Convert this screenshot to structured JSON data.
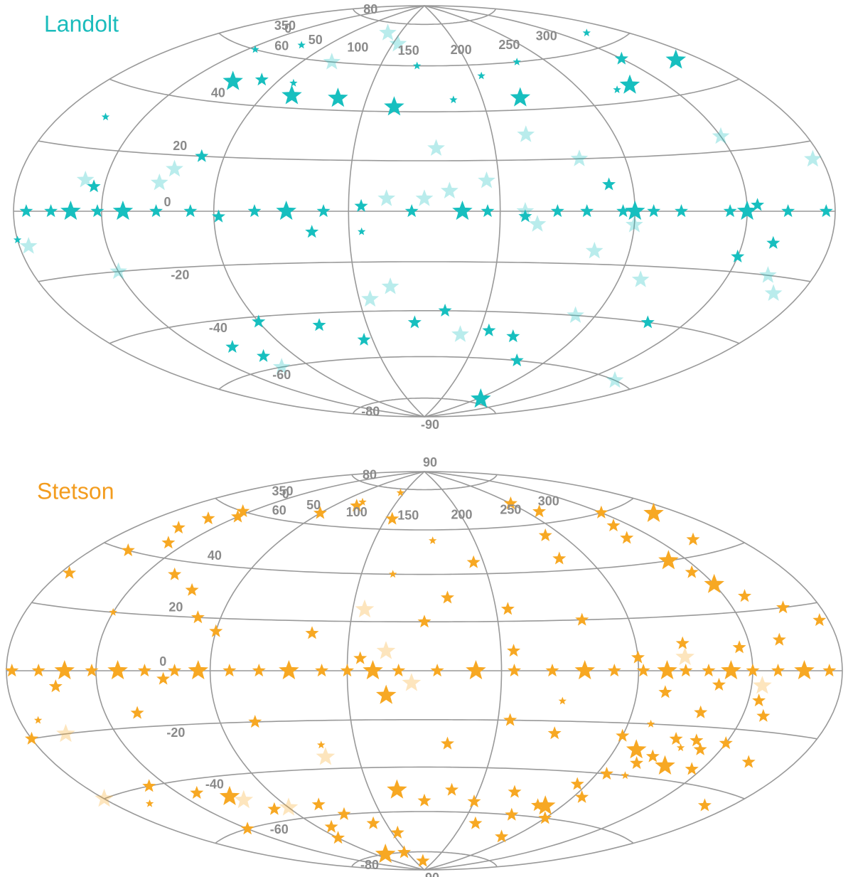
{
  "chart_data": [
    {
      "type": "scatter",
      "projection": "hammer",
      "title": "Landolt",
      "title_color": "#1bbcbc",
      "grid": true,
      "xlim": [
        -15,
        345
      ],
      "ylim": [
        -90,
        90
      ],
      "xticks": [
        0,
        50,
        100,
        150,
        200,
        250,
        300,
        350
      ],
      "yticks": [
        -90,
        -80,
        -60,
        -40,
        -20,
        0,
        20,
        40,
        60,
        80
      ],
      "series": [
        {
          "color": "#17bfbf",
          "opacity": 1,
          "size": 15,
          "x": [
            15,
            40,
            110,
            180,
            250,
            300,
            55,
            95,
            120,
            150,
            215,
            280,
            330,
            255
          ],
          "y": [
            0,
            0,
            0,
            0,
            0,
            0,
            48,
            45,
            45,
            42,
            45,
            46,
            50,
            -78
          ]
        },
        {
          "color": "#17bfbf",
          "opacity": 1,
          "size": 10,
          "x": [
            5,
            28,
            55,
            70,
            82,
            97,
            125,
            140,
            160,
            190,
            205,
            218,
            230,
            245,
            258,
            270,
            292,
            305,
            320,
            340,
            352,
            240,
            300,
            315,
            25,
            110,
            80,
            160,
            175,
            200,
            215,
            230,
            60,
            50,
            130,
            280,
            120,
            70,
            70,
            300
          ],
          "y": [
            0,
            0,
            0,
            0,
            -2,
            0,
            0,
            2,
            0,
            0,
            -2,
            0,
            0,
            0,
            0,
            0,
            0,
            2,
            0,
            0,
            0,
            10,
            -15,
            -10,
            8,
            -45,
            -42,
            -45,
            -40,
            -48,
            -50,
            -60,
            -55,
            -50,
            -52,
            -40,
            -8,
            20,
            50,
            55
          ]
        },
        {
          "color": "#17bfbf",
          "opacity": 1,
          "size": 6,
          "x": [
            35,
            60,
            200,
            230,
            320,
            160,
            10,
            345,
            140,
            90,
            270,
            180
          ],
          "y": [
            60,
            65,
            55,
            60,
            65,
            60,
            30,
            -8,
            -8,
            50,
            45,
            45
          ]
        },
        {
          "color": "#17bfbf",
          "opacity": 0.3,
          "size": 13,
          "x": [
            20,
            30,
            150,
            165,
            175,
            190,
            205,
            210,
            235,
            250,
            260,
            320,
            330,
            340,
            350,
            120,
            140,
            210,
            230,
            170,
            60,
            55,
            150,
            185,
            140,
            60,
            240,
            320,
            100,
            300
          ],
          "y": [
            10,
            -20,
            5,
            5,
            8,
            12,
            0,
            -5,
            -15,
            -5,
            -25,
            -20,
            -25,
            15,
            -10,
            75,
            70,
            30,
            20,
            25,
            15,
            10,
            -30,
            -50,
            -35,
            -60,
            -40,
            -60,
            60,
            25
          ]
        }
      ]
    },
    {
      "type": "scatter",
      "projection": "hammer",
      "title": "Stetson",
      "title_color": "#f39c1e",
      "grid": true,
      "xlim": [
        -15,
        345
      ],
      "ylim": [
        -90,
        90
      ],
      "xticks": [
        0,
        50,
        100,
        150,
        200,
        250,
        300,
        350
      ],
      "yticks": [
        -90,
        -80,
        -60,
        -40,
        -20,
        0,
        20,
        40,
        60,
        80,
        90
      ],
      "series": [
        {
          "color": "#f7a823",
          "opacity": 1,
          "size": 15,
          "x": [
            15,
            40,
            75,
            112,
            145,
            185,
            228,
            262,
            290,
            325,
            150,
            290,
            300,
            260,
            280,
            240,
            95,
            150,
            55,
            330
          ],
          "y": [
            0,
            0,
            0,
            0,
            0,
            0,
            0,
            0,
            0,
            0,
            -10,
            40,
            30,
            -30,
            -35,
            -55,
            -80,
            -50,
            -48,
            55
          ]
        },
        {
          "color": "#f7a823",
          "opacity": 1,
          "size": 10,
          "x": [
            2,
            28,
            52,
            65,
            88,
            100,
            125,
            135,
            155,
            170,
            200,
            215,
            240,
            252,
            270,
            280,
            300,
            312,
            338,
            348,
            10,
            60,
            140,
            200,
            250,
            262,
            270,
            285,
            295,
            305,
            280,
            230,
            200,
            165,
            120,
            80,
            95,
            45,
            285,
            295,
            310,
            290,
            300,
            320,
            260,
            250,
            240,
            235,
            325,
            315,
            340,
            350,
            10,
            15,
            20,
            25,
            30,
            5,
            45,
            60,
            70,
            80,
            100,
            140,
            190,
            175,
            250,
            255,
            265,
            270,
            275,
            285,
            290,
            295,
            300,
            245,
            255,
            235,
            225,
            215,
            250,
            240,
            205,
            195,
            180,
            165,
            140,
            125,
            110,
            100,
            90,
            80,
            70,
            40,
            30,
            20,
            175,
            200,
            220,
            310,
            320,
            330,
            345,
            130,
            160
          ],
          "y": [
            0,
            0,
            0,
            0,
            0,
            0,
            0,
            0,
            0,
            0,
            0,
            0,
            0,
            0,
            0,
            0,
            0,
            0,
            0,
            0,
            -5,
            -3,
            5,
            8,
            5,
            -8,
            10,
            -5,
            8,
            -10,
            -15,
            20,
            25,
            20,
            15,
            15,
            -20,
            -15,
            50,
            35,
            25,
            55,
            60,
            45,
            65,
            70,
            55,
            45,
            20,
            10,
            15,
            30,
            50,
            55,
            45,
            60,
            58,
            40,
            35,
            30,
            20,
            65,
            70,
            65,
            45,
            30,
            -25,
            -40,
            -35,
            -32,
            -25,
            -25,
            -28,
            -35,
            -25,
            -45,
            -50,
            -55,
            -60,
            -50,
            -60,
            -70,
            -65,
            -55,
            -50,
            -55,
            -70,
            -65,
            -60,
            -55,
            -65,
            -70,
            -55,
            -45,
            -60,
            -40,
            -30,
            -20,
            -25,
            -15,
            -30,
            -45,
            -20,
            -80,
            -85
          ]
        },
        {
          "color": "#f7a823",
          "opacity": 1,
          "size": 6,
          "x": [
            100,
            130,
            150,
            170,
            260,
            280,
            30,
            220,
            265,
            120,
            5,
            355
          ],
          "y": [
            72,
            78,
            40,
            55,
            -20,
            -28,
            20,
            -12,
            -40,
            -30,
            -45,
            -15
          ]
        },
        {
          "color": "#f7a823",
          "opacity": 0.3,
          "size": 14,
          "x": [
            150,
            160,
            120,
            5,
            60,
            80,
            345,
            270,
            305,
            140
          ],
          "y": [
            8,
            -5,
            -35,
            -20,
            -50,
            -55,
            -40,
            5,
            -5,
            25
          ]
        }
      ]
    }
  ]
}
